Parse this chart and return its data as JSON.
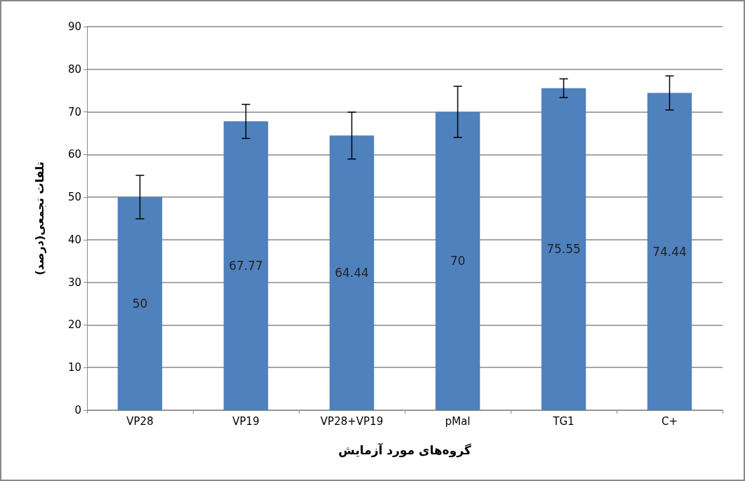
{
  "chart_data": {
    "type": "bar",
    "xlabel": "گروه‌های مورد آزمایش",
    "ylabel": "تلفات تجمعی(درصد)",
    "categories": [
      "VP28",
      "VP19",
      "VP28+VP19",
      "pMal",
      "TG1",
      "C+"
    ],
    "values": [
      50,
      67.77,
      64.44,
      70,
      75.55,
      74.44
    ],
    "errors": [
      5.1,
      4,
      5.5,
      6,
      2.2,
      4
    ],
    "color": "#4f81bd",
    "ylim": [
      0,
      90
    ],
    "yticks": [
      0,
      10,
      20,
      30,
      40,
      50,
      60,
      70,
      80,
      90
    ],
    "grid": "y",
    "data_labels": true
  }
}
